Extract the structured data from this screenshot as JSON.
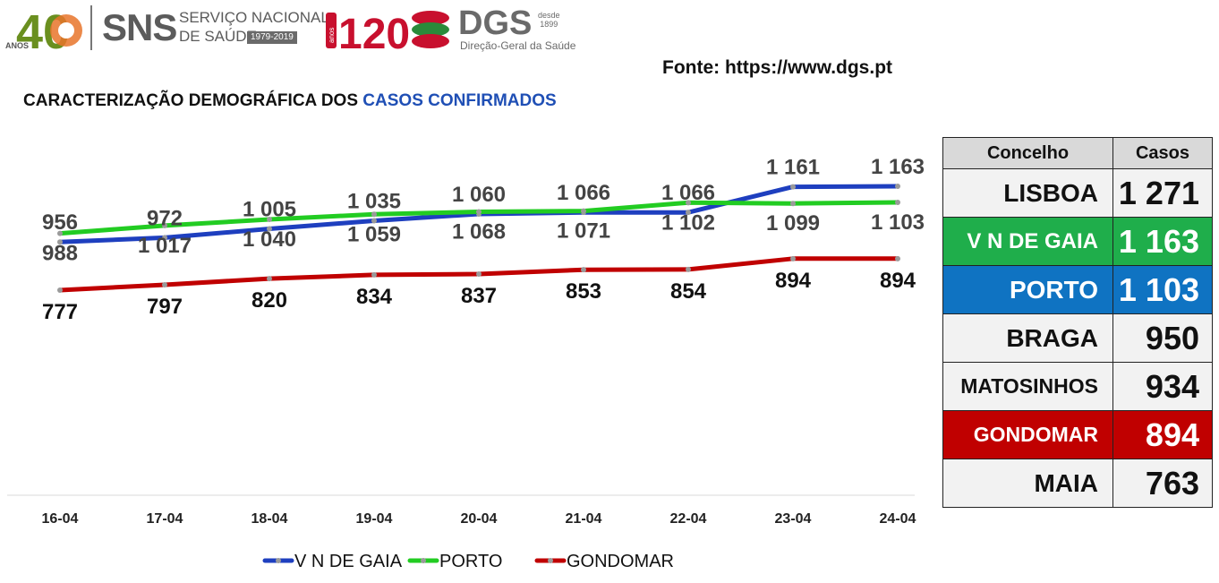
{
  "header": {
    "sns_anos": "ANOS",
    "sns_40": "40",
    "sns_name": "SNS",
    "sns_sub1": "SERVIÇO NACIONAL",
    "sns_sub2": "DE SAÚDE",
    "sns_years": "1979-2019",
    "dgs_120": "120",
    "dgs_anos": "anos",
    "dgs_name": "DGS",
    "dgs_desde": "desde",
    "dgs_year": "1899",
    "dgs_sub": "Direção-Geral da Saúde"
  },
  "source": "Fonte: https://www.dgs.pt",
  "title": {
    "prefix": "CARACTERIZAÇÃO DEMOGRÁFICA DOS ",
    "highlight": "CASOS CONFIRMADOS"
  },
  "colors": {
    "vngaia": "#1e3fbf",
    "porto": "#22cc22",
    "gondomar": "#c00000",
    "table_header": "#d9d9d9",
    "table_green": "#1fae4b",
    "table_blue": "#0f73c2",
    "table_red": "#c00000"
  },
  "chart_data": {
    "type": "line",
    "categories": [
      "16-04",
      "17-04",
      "18-04",
      "19-04",
      "20-04",
      "21-04",
      "22-04",
      "23-04",
      "24-04"
    ],
    "series": [
      {
        "name": "V N DE GAIA",
        "color": "#1e3fbf",
        "values": [
          956,
          972,
          1005,
          1035,
          1060,
          1066,
          1066,
          1161,
          1163
        ],
        "labels": [
          "956",
          "972",
          "1 005",
          "1 035",
          "1 060",
          "1 066",
          "1 066",
          "1 161",
          "1 163"
        ]
      },
      {
        "name": "PORTO",
        "color": "#22cc22",
        "values": [
          988,
          1017,
          1040,
          1059,
          1068,
          1071,
          1102,
          1099,
          1103
        ],
        "labels": [
          "988",
          "1 017",
          "1 040",
          "1 059",
          "1 068",
          "1 071",
          "1 102",
          "1 099",
          "1 103"
        ]
      },
      {
        "name": "GONDOMAR",
        "color": "#c00000",
        "values": [
          777,
          797,
          820,
          834,
          837,
          853,
          854,
          894,
          894
        ],
        "labels": [
          "777",
          "797",
          "820",
          "834",
          "837",
          "853",
          "854",
          "894",
          "894"
        ]
      }
    ],
    "legend_position": "bottom",
    "grid": false
  },
  "ranking": {
    "header_name": "Concelho",
    "header_value": "Casos",
    "rows": [
      {
        "name": "LISBOA",
        "value": "1 271",
        "style": "plain",
        "font": 28
      },
      {
        "name": "V N DE GAIA",
        "value": "1 163",
        "style": "green",
        "font": 24
      },
      {
        "name": "PORTO",
        "value": "1 103",
        "style": "blue",
        "font": 28
      },
      {
        "name": "BRAGA",
        "value": "950",
        "style": "plain",
        "font": 28
      },
      {
        "name": "MATOSINHOS",
        "value": "934",
        "style": "plain",
        "font": 23
      },
      {
        "name": "GONDOMAR",
        "value": "894",
        "style": "red",
        "font": 23
      },
      {
        "name": "MAIA",
        "value": "763",
        "style": "plain",
        "font": 28
      }
    ]
  }
}
